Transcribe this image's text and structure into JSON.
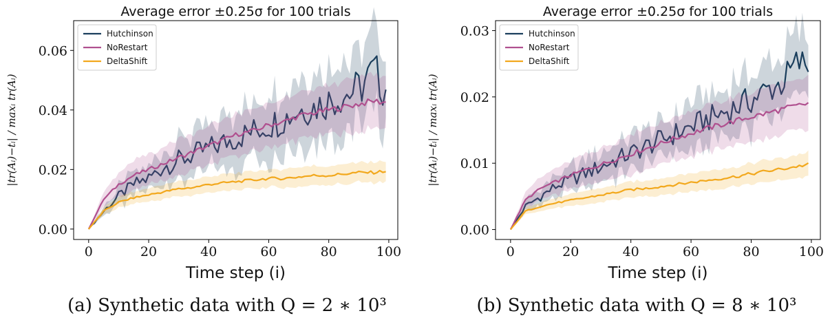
{
  "colors": {
    "Hutchinson": "#1a3e5c",
    "NoRestart": "#b0508f",
    "DeltaShift": "#f2a81d"
  },
  "chart_data": [
    {
      "type": "line",
      "title": "Average error ±0.25σ for 100 trials",
      "xlabel": "Time step (i)",
      "ylabel": "|tr(Aᵢ)−tᵢ| / maxᵢ tr(Aᵢ)",
      "caption": "(a)  Synthetic data with Q = 2 ∗ 10³",
      "xlim": [
        -5,
        103
      ],
      "ylim": [
        -0.0035,
        0.07
      ],
      "xticks": [
        0,
        20,
        40,
        60,
        80,
        100
      ],
      "xtick_labels": [
        "0",
        "20",
        "40",
        "60",
        "80",
        "100"
      ],
      "yticks": [
        0,
        0.02,
        0.04,
        0.06
      ],
      "ytick_labels": [
        "0.00",
        "0.02",
        "0.04",
        "0.06"
      ],
      "legend": "top-left",
      "series": [
        {
          "name": "Hutchinson",
          "x": [
            0,
            5,
            10,
            15,
            20,
            25,
            30,
            35,
            40,
            45,
            50,
            55,
            60,
            65,
            70,
            75,
            80,
            85,
            90,
            95,
            99
          ],
          "values": [
            0.0,
            0.006,
            0.011,
            0.015,
            0.017,
            0.021,
            0.023,
            0.025,
            0.027,
            0.029,
            0.031,
            0.033,
            0.035,
            0.037,
            0.04,
            0.041,
            0.043,
            0.045,
            0.047,
            0.053,
            0.047
          ],
          "band": [
            0.0,
            0.0015,
            0.003,
            0.004,
            0.005,
            0.006,
            0.0065,
            0.007,
            0.0075,
            0.008,
            0.0085,
            0.009,
            0.0095,
            0.01,
            0.0105,
            0.011,
            0.0115,
            0.012,
            0.013,
            0.014,
            0.014
          ]
        },
        {
          "name": "NoRestart",
          "x": [
            0,
            5,
            10,
            15,
            20,
            25,
            30,
            35,
            40,
            45,
            50,
            55,
            60,
            65,
            70,
            75,
            80,
            85,
            90,
            95,
            99
          ],
          "values": [
            0.0,
            0.01,
            0.015,
            0.018,
            0.02,
            0.022,
            0.024,
            0.026,
            0.028,
            0.03,
            0.032,
            0.033,
            0.035,
            0.036,
            0.038,
            0.039,
            0.04,
            0.041,
            0.042,
            0.043,
            0.0425
          ],
          "band": [
            0.0,
            0.0025,
            0.004,
            0.005,
            0.005,
            0.0055,
            0.006,
            0.006,
            0.0065,
            0.0065,
            0.007,
            0.007,
            0.0075,
            0.0075,
            0.008,
            0.008,
            0.0085,
            0.0085,
            0.009,
            0.009,
            0.009
          ]
        },
        {
          "name": "DeltaShift",
          "x": [
            0,
            5,
            10,
            15,
            20,
            25,
            30,
            35,
            40,
            45,
            50,
            55,
            60,
            65,
            70,
            75,
            80,
            85,
            90,
            95,
            99
          ],
          "values": [
            0.0,
            0.006,
            0.009,
            0.0105,
            0.0115,
            0.0125,
            0.0135,
            0.014,
            0.015,
            0.0155,
            0.016,
            0.0165,
            0.017,
            0.017,
            0.0175,
            0.018,
            0.018,
            0.0185,
            0.019,
            0.019,
            0.0195
          ],
          "band": [
            0.0,
            0.0012,
            0.0018,
            0.002,
            0.0022,
            0.0024,
            0.0025,
            0.0026,
            0.0027,
            0.0028,
            0.0029,
            0.003,
            0.003,
            0.0031,
            0.0031,
            0.0032,
            0.0032,
            0.0033,
            0.0033,
            0.0034,
            0.0034
          ]
        }
      ]
    },
    {
      "type": "line",
      "title": "Average error ±0.25σ for 100 trials",
      "xlabel": "Time step (i)",
      "ylabel": "|tr(Aᵢ)−tᵢ| / maxᵢ tr(Aᵢ)",
      "caption": "(b)  Synthetic data with Q = 8 ∗ 10³",
      "xlim": [
        -5,
        103
      ],
      "ylim": [
        -0.0015,
        0.0315
      ],
      "xticks": [
        0,
        20,
        40,
        60,
        80,
        100
      ],
      "xtick_labels": [
        "0",
        "20",
        "40",
        "60",
        "80",
        "100"
      ],
      "yticks": [
        0,
        0.01,
        0.02,
        0.03
      ],
      "ytick_labels": [
        "0.00",
        "0.01",
        "0.02",
        "0.03"
      ],
      "legend": "top-left",
      "series": [
        {
          "name": "Hutchinson",
          "x": [
            0,
            5,
            10,
            15,
            20,
            25,
            30,
            35,
            40,
            45,
            50,
            55,
            60,
            65,
            70,
            75,
            80,
            85,
            90,
            95,
            99
          ],
          "values": [
            0.0,
            0.0035,
            0.005,
            0.0065,
            0.0075,
            0.0085,
            0.0095,
            0.0105,
            0.0115,
            0.0125,
            0.0135,
            0.0145,
            0.0155,
            0.0165,
            0.0175,
            0.0185,
            0.0195,
            0.021,
            0.022,
            0.025,
            0.025
          ],
          "band": [
            0.0,
            0.0008,
            0.0013,
            0.0016,
            0.0019,
            0.0021,
            0.0023,
            0.0025,
            0.0027,
            0.0029,
            0.003,
            0.0032,
            0.0034,
            0.0035,
            0.0037,
            0.0039,
            0.004,
            0.0042,
            0.0044,
            0.0046,
            0.0048
          ]
        },
        {
          "name": "NoRestart",
          "x": [
            0,
            5,
            10,
            15,
            20,
            25,
            30,
            35,
            40,
            45,
            50,
            55,
            60,
            65,
            70,
            75,
            80,
            85,
            90,
            95,
            99
          ],
          "values": [
            0.0,
            0.0045,
            0.0062,
            0.0072,
            0.0082,
            0.009,
            0.0098,
            0.0106,
            0.0114,
            0.0122,
            0.013,
            0.0138,
            0.0145,
            0.0152,
            0.0158,
            0.0164,
            0.017,
            0.0175,
            0.0181,
            0.0186,
            0.019
          ],
          "band": [
            0.0,
            0.0012,
            0.0017,
            0.002,
            0.0022,
            0.0024,
            0.0026,
            0.0028,
            0.003,
            0.003,
            0.0032,
            0.0032,
            0.0034,
            0.0035,
            0.0036,
            0.0036,
            0.0037,
            0.0038,
            0.0039,
            0.004,
            0.004
          ]
        },
        {
          "name": "DeltaShift",
          "x": [
            0,
            5,
            10,
            15,
            20,
            25,
            30,
            35,
            40,
            45,
            50,
            55,
            60,
            65,
            70,
            75,
            80,
            85,
            90,
            95,
            99
          ],
          "values": [
            0.0,
            0.0028,
            0.0035,
            0.004,
            0.0044,
            0.0048,
            0.0052,
            0.0056,
            0.006,
            0.0062,
            0.0065,
            0.0068,
            0.0071,
            0.0074,
            0.0077,
            0.008,
            0.0084,
            0.0088,
            0.0091,
            0.0095,
            0.0098
          ],
          "band": [
            0.0,
            0.0005,
            0.0007,
            0.0008,
            0.0009,
            0.001,
            0.0011,
            0.0011,
            0.0012,
            0.0012,
            0.0013,
            0.0013,
            0.0014,
            0.0014,
            0.0015,
            0.0015,
            0.0016,
            0.0016,
            0.0017,
            0.0017,
            0.0018
          ]
        }
      ]
    }
  ]
}
